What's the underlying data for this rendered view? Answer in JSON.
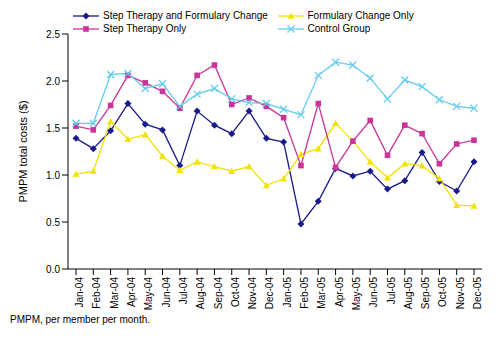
{
  "chart_data": {
    "type": "line",
    "y_label": "PMPM total costs ($)",
    "footnote": "PMPM, per member per month.",
    "categories": [
      "Jan-04",
      "Feb-04",
      "Mar-04",
      "Apr-04",
      "May-04",
      "Jun-04",
      "Jul-04",
      "Aug-04",
      "Sep-04",
      "Oct-04",
      "Nov-04",
      "Dec-04",
      "Jan-05",
      "Feb-05",
      "Mar-05",
      "Apr-05",
      "May-05",
      "Jun-05",
      "Jul-05",
      "Aug-05",
      "Sep-05",
      "Oct-05",
      "Nov-05",
      "Dec-05"
    ],
    "series": [
      {
        "name": "Step Therapy and Formulary Change",
        "color": "#1a1a8c",
        "marker": "diamond",
        "values": [
          1.39,
          1.28,
          1.47,
          1.76,
          1.54,
          1.48,
          1.1,
          1.68,
          1.53,
          1.44,
          1.68,
          1.39,
          1.35,
          0.48,
          0.72,
          1.07,
          0.99,
          1.04,
          0.85,
          0.94,
          1.24,
          0.93,
          0.83,
          1.14
        ]
      },
      {
        "name": "Formulary Change Only",
        "color": "#f2e400",
        "marker": "triangle",
        "values": [
          1.01,
          1.04,
          1.57,
          1.38,
          1.43,
          1.2,
          1.05,
          1.14,
          1.09,
          1.04,
          1.09,
          0.89,
          0.96,
          1.22,
          1.28,
          1.55,
          1.36,
          1.14,
          0.97,
          1.12,
          1.1,
          0.96,
          0.68,
          0.67
        ]
      },
      {
        "name": "Step Therapy Only",
        "color": "#cc3399",
        "marker": "square",
        "values": [
          1.52,
          1.48,
          1.74,
          2.06,
          1.98,
          1.89,
          1.71,
          2.06,
          2.17,
          1.75,
          1.82,
          1.73,
          1.61,
          1.1,
          1.76,
          1.08,
          1.36,
          1.58,
          1.21,
          1.53,
          1.44,
          1.12,
          1.33,
          1.37
        ]
      },
      {
        "name": "Control Group",
        "color": "#66ccee",
        "marker": "cross",
        "values": [
          1.55,
          1.55,
          2.07,
          2.08,
          1.92,
          1.97,
          1.73,
          1.86,
          1.92,
          1.81,
          1.77,
          1.76,
          1.7,
          1.64,
          2.06,
          2.2,
          2.17,
          2.03,
          1.81,
          2.01,
          1.94,
          1.8,
          1.73,
          1.71
        ]
      }
    ],
    "ylim": [
      0,
      2.5
    ],
    "yticks": [
      {
        "value": 0,
        "label": "0.0"
      },
      {
        "value": 0.5,
        "label": "0.5"
      },
      {
        "value": 1,
        "label": "1.0"
      },
      {
        "value": 1.5,
        "label": "1.5"
      },
      {
        "value": 2,
        "label": "2.0"
      },
      {
        "value": 2.5,
        "label": "2.5"
      }
    ],
    "legend": "top",
    "grid": false
  }
}
